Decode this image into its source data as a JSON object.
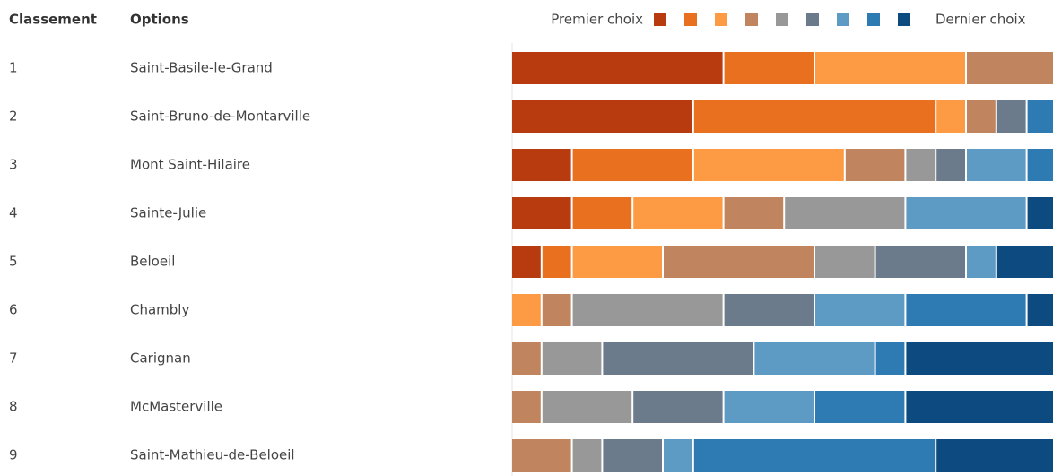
{
  "chart_data": {
    "type": "stacked-bar",
    "column_headers": [
      "Classement",
      "Options"
    ],
    "legend": {
      "first": "Premier choix",
      "last": "Dernier choix"
    },
    "ranks": [
      1,
      2,
      3,
      4,
      5,
      6,
      7,
      8,
      9
    ],
    "categories": [
      "Saint-Basile-le-Grand",
      "Saint-Bruno-de-Montarville",
      "Mont Saint-Hilaire",
      "Sainte-Julie",
      "Beloeil",
      "Chambly",
      "Carignan",
      "McMasterville",
      "Saint-Mathieu-de-Beloeil"
    ],
    "xlim": [
      0,
      18
    ],
    "series": [
      {
        "color": "#b83b10",
        "values": [
          7,
          6,
          2,
          2,
          1,
          0,
          0,
          0,
          0
        ]
      },
      {
        "color": "#e8701e",
        "values": [
          3,
          8,
          4,
          2,
          1,
          0,
          0,
          0,
          0
        ]
      },
      {
        "color": "#fd9b45",
        "values": [
          5,
          1,
          5,
          3,
          3,
          1,
          0,
          0,
          0
        ]
      },
      {
        "color": "#c0855e",
        "values": [
          3,
          1,
          2,
          2,
          5,
          1,
          1,
          1,
          2
        ]
      },
      {
        "color": "#989898",
        "values": [
          0,
          0,
          1,
          4,
          2,
          5,
          2,
          3,
          1
        ]
      },
      {
        "color": "#6c7b8b",
        "values": [
          0,
          1,
          1,
          0,
          3,
          3,
          5,
          3,
          2
        ]
      },
      {
        "color": "#5d9ac4",
        "values": [
          0,
          0,
          2,
          4,
          1,
          3,
          4,
          3,
          1
        ]
      },
      {
        "color": "#2e7bb3",
        "values": [
          0,
          1,
          1,
          0,
          0,
          4,
          1,
          3,
          8
        ]
      },
      {
        "color": "#0d4a80",
        "values": [
          0,
          0,
          0,
          1,
          2,
          1,
          5,
          5,
          4
        ]
      }
    ]
  }
}
